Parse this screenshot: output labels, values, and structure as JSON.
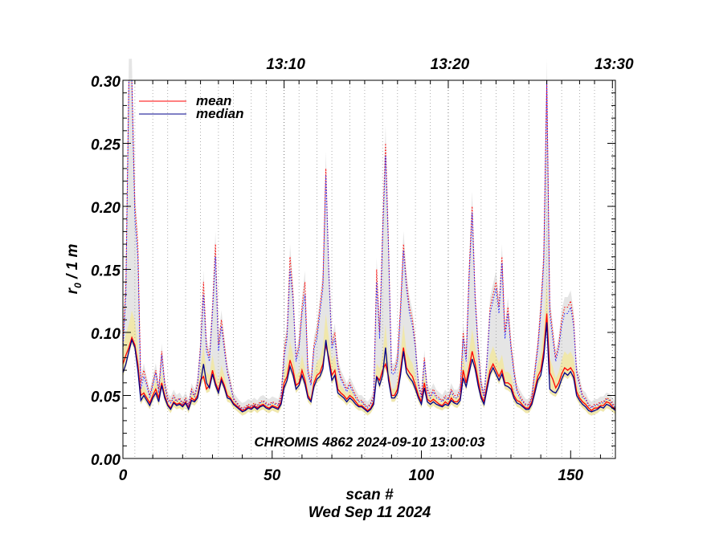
{
  "chart_data": {
    "type": "line",
    "title": "",
    "xlabel": "scan #",
    "ylabel_main": "r",
    "ylabel_sub": "0",
    "ylabel_rest": " / 1 m",
    "date_label": "Wed Sep 11 2024",
    "annotation": "CHROMIS 4862 2024-09-10 13:00:03",
    "xlim": [
      0,
      165
    ],
    "ylim": [
      0.0,
      0.3
    ],
    "x_ticks": [
      "0",
      "50",
      "100",
      "150"
    ],
    "x_tick_values": [
      0,
      50,
      100,
      150
    ],
    "y_ticks": [
      "0.00",
      "0.05",
      "0.10",
      "0.15",
      "0.20",
      "0.25",
      "0.30"
    ],
    "y_tick_values": [
      0.0,
      0.05,
      0.1,
      0.15,
      0.2,
      0.25,
      0.3
    ],
    "time_ticks": [
      "13:10",
      "13:20",
      "13:30"
    ],
    "time_tick_scans": [
      54,
      109,
      164
    ],
    "minute_scans": [
      4,
      10,
      15,
      21,
      26,
      32,
      37,
      43,
      48,
      59,
      65,
      70,
      76,
      81,
      87,
      92,
      98,
      103,
      114,
      120,
      125,
      131,
      136,
      142,
      147,
      153,
      158
    ],
    "legend": [
      "mean",
      "median"
    ],
    "colors": {
      "mean": "#ff0000",
      "median": "#00008b",
      "band_gray": "#dcdcdc",
      "band_yellow": "#f2e79c",
      "axis": "#000000",
      "grid": "#999999"
    },
    "series": [
      {
        "name": "mean",
        "values": [
          0.075,
          0.082,
          0.088,
          0.096,
          0.09,
          0.075,
          0.05,
          0.052,
          0.048,
          0.044,
          0.05,
          0.055,
          0.048,
          0.06,
          0.05,
          0.043,
          0.04,
          0.045,
          0.043,
          0.044,
          0.042,
          0.045,
          0.04,
          0.048,
          0.046,
          0.05,
          0.062,
          0.065,
          0.055,
          0.058,
          0.07,
          0.06,
          0.054,
          0.064,
          0.058,
          0.05,
          0.048,
          0.044,
          0.042,
          0.04,
          0.038,
          0.039,
          0.041,
          0.04,
          0.042,
          0.04,
          0.042,
          0.043,
          0.041,
          0.04,
          0.042,
          0.041,
          0.04,
          0.045,
          0.06,
          0.065,
          0.078,
          0.07,
          0.058,
          0.06,
          0.07,
          0.062,
          0.05,
          0.046,
          0.06,
          0.066,
          0.068,
          0.075,
          0.09,
          0.08,
          0.066,
          0.07,
          0.055,
          0.052,
          0.05,
          0.047,
          0.05,
          0.048,
          0.045,
          0.042,
          0.042,
          0.04,
          0.038,
          0.04,
          0.045,
          0.065,
          0.062,
          0.07,
          0.075,
          0.065,
          0.05,
          0.05,
          0.055,
          0.07,
          0.088,
          0.072,
          0.068,
          0.065,
          0.058,
          0.05,
          0.045,
          0.06,
          0.047,
          0.045,
          0.047,
          0.045,
          0.043,
          0.042,
          0.045,
          0.043,
          0.048,
          0.045,
          0.045,
          0.048,
          0.07,
          0.06,
          0.072,
          0.085,
          0.075,
          0.062,
          0.05,
          0.045,
          0.058,
          0.07,
          0.075,
          0.07,
          0.065,
          0.07,
          0.06,
          0.06,
          0.058,
          0.05,
          0.046,
          0.045,
          0.042,
          0.04,
          0.04,
          0.045,
          0.055,
          0.065,
          0.07,
          0.085,
          0.115,
          0.068,
          0.063,
          0.056,
          0.06,
          0.067,
          0.072,
          0.07,
          0.072,
          0.068,
          0.053,
          0.048,
          0.045,
          0.043,
          0.04,
          0.038,
          0.04,
          0.04,
          0.042,
          0.042,
          0.045,
          0.044,
          0.041,
          0.039
        ]
      },
      {
        "name": "median",
        "values": [
          0.068,
          0.075,
          0.085,
          0.094,
          0.088,
          0.07,
          0.046,
          0.05,
          0.046,
          0.042,
          0.048,
          0.052,
          0.045,
          0.058,
          0.048,
          0.042,
          0.039,
          0.044,
          0.042,
          0.043,
          0.041,
          0.044,
          0.039,
          0.046,
          0.045,
          0.048,
          0.06,
          0.075,
          0.06,
          0.056,
          0.067,
          0.058,
          0.052,
          0.062,
          0.056,
          0.048,
          0.047,
          0.043,
          0.041,
          0.039,
          0.037,
          0.038,
          0.04,
          0.039,
          0.041,
          0.039,
          0.041,
          0.042,
          0.04,
          0.039,
          0.041,
          0.04,
          0.039,
          0.043,
          0.056,
          0.062,
          0.073,
          0.066,
          0.055,
          0.058,
          0.066,
          0.059,
          0.048,
          0.045,
          0.057,
          0.063,
          0.065,
          0.071,
          0.094,
          0.077,
          0.062,
          0.066,
          0.052,
          0.05,
          0.048,
          0.045,
          0.048,
          0.046,
          0.043,
          0.041,
          0.041,
          0.039,
          0.037,
          0.039,
          0.043,
          0.065,
          0.058,
          0.066,
          0.088,
          0.062,
          0.048,
          0.048,
          0.052,
          0.066,
          0.085,
          0.068,
          0.064,
          0.061,
          0.055,
          0.048,
          0.043,
          0.056,
          0.045,
          0.043,
          0.045,
          0.043,
          0.042,
          0.041,
          0.043,
          0.042,
          0.046,
          0.044,
          0.043,
          0.046,
          0.064,
          0.057,
          0.068,
          0.079,
          0.071,
          0.058,
          0.048,
          0.043,
          0.055,
          0.067,
          0.072,
          0.067,
          0.062,
          0.067,
          0.058,
          0.057,
          0.055,
          0.048,
          0.044,
          0.043,
          0.041,
          0.039,
          0.039,
          0.043,
          0.052,
          0.062,
          0.066,
          0.08,
          0.108,
          0.055,
          0.053,
          0.052,
          0.056,
          0.063,
          0.068,
          0.066,
          0.069,
          0.064,
          0.05,
          0.046,
          0.043,
          0.041,
          0.038,
          0.037,
          0.038,
          0.039,
          0.041,
          0.04,
          0.043,
          0.042,
          0.04,
          0.038
        ]
      },
      {
        "name": "mean_dotted",
        "values": [
          0.09,
          0.14,
          0.3,
          0.3,
          0.2,
          0.17,
          0.06,
          0.07,
          0.06,
          0.05,
          0.06,
          0.07,
          0.055,
          0.085,
          0.06,
          0.048,
          0.045,
          0.05,
          0.046,
          0.048,
          0.044,
          0.048,
          0.043,
          0.055,
          0.05,
          0.06,
          0.09,
          0.14,
          0.09,
          0.08,
          0.12,
          0.17,
          0.09,
          0.11,
          0.09,
          0.07,
          0.06,
          0.048,
          0.045,
          0.042,
          0.04,
          0.041,
          0.043,
          0.042,
          0.044,
          0.042,
          0.045,
          0.046,
          0.044,
          0.043,
          0.045,
          0.044,
          0.043,
          0.05,
          0.085,
          0.1,
          0.16,
          0.13,
          0.08,
          0.09,
          0.12,
          0.14,
          0.07,
          0.06,
          0.09,
          0.1,
          0.12,
          0.14,
          0.23,
          0.15,
          0.09,
          0.1,
          0.075,
          0.065,
          0.06,
          0.055,
          0.06,
          0.055,
          0.05,
          0.046,
          0.046,
          0.043,
          0.041,
          0.044,
          0.05,
          0.15,
          0.1,
          0.18,
          0.25,
          0.17,
          0.07,
          0.07,
          0.08,
          0.12,
          0.17,
          0.14,
          0.12,
          0.11,
          0.09,
          0.06,
          0.05,
          0.08,
          0.055,
          0.05,
          0.055,
          0.05,
          0.048,
          0.046,
          0.05,
          0.047,
          0.055,
          0.05,
          0.05,
          0.055,
          0.1,
          0.08,
          0.15,
          0.2,
          0.13,
          0.09,
          0.06,
          0.05,
          0.08,
          0.12,
          0.13,
          0.14,
          0.12,
          0.16,
          0.1,
          0.12,
          0.09,
          0.07,
          0.055,
          0.05,
          0.046,
          0.043,
          0.043,
          0.05,
          0.07,
          0.09,
          0.12,
          0.16,
          0.3,
          0.12,
          0.1,
          0.08,
          0.09,
          0.11,
          0.12,
          0.12,
          0.125,
          0.11,
          0.07,
          0.06,
          0.05,
          0.048,
          0.043,
          0.041,
          0.043,
          0.043,
          0.045,
          0.045,
          0.048,
          0.047,
          0.044,
          0.041
        ]
      },
      {
        "name": "median_dotted",
        "values": [
          0.085,
          0.13,
          0.3,
          0.3,
          0.19,
          0.16,
          0.055,
          0.065,
          0.058,
          0.048,
          0.058,
          0.068,
          0.052,
          0.082,
          0.058,
          0.046,
          0.044,
          0.048,
          0.045,
          0.047,
          0.043,
          0.047,
          0.042,
          0.053,
          0.049,
          0.058,
          0.087,
          0.13,
          0.085,
          0.077,
          0.115,
          0.16,
          0.085,
          0.105,
          0.085,
          0.068,
          0.058,
          0.047,
          0.044,
          0.041,
          0.039,
          0.04,
          0.042,
          0.041,
          0.043,
          0.041,
          0.044,
          0.045,
          0.043,
          0.042,
          0.044,
          0.043,
          0.042,
          0.048,
          0.08,
          0.095,
          0.15,
          0.125,
          0.077,
          0.087,
          0.115,
          0.13,
          0.067,
          0.058,
          0.087,
          0.095,
          0.115,
          0.135,
          0.225,
          0.145,
          0.087,
          0.095,
          0.072,
          0.063,
          0.058,
          0.053,
          0.058,
          0.053,
          0.048,
          0.045,
          0.045,
          0.042,
          0.04,
          0.043,
          0.048,
          0.14,
          0.095,
          0.175,
          0.24,
          0.165,
          0.067,
          0.067,
          0.077,
          0.115,
          0.165,
          0.135,
          0.115,
          0.105,
          0.087,
          0.058,
          0.048,
          0.077,
          0.053,
          0.048,
          0.053,
          0.048,
          0.047,
          0.045,
          0.048,
          0.046,
          0.053,
          0.048,
          0.048,
          0.053,
          0.095,
          0.077,
          0.145,
          0.195,
          0.125,
          0.087,
          0.058,
          0.048,
          0.077,
          0.115,
          0.125,
          0.135,
          0.115,
          0.155,
          0.095,
          0.115,
          0.087,
          0.068,
          0.053,
          0.048,
          0.045,
          0.042,
          0.042,
          0.048,
          0.068,
          0.087,
          0.115,
          0.155,
          0.3,
          0.115,
          0.095,
          0.077,
          0.087,
          0.105,
          0.115,
          0.115,
          0.12,
          0.105,
          0.068,
          0.058,
          0.048,
          0.047,
          0.042,
          0.04,
          0.042,
          0.042,
          0.044,
          0.044,
          0.047,
          0.046,
          0.043,
          0.04
        ]
      }
    ]
  }
}
